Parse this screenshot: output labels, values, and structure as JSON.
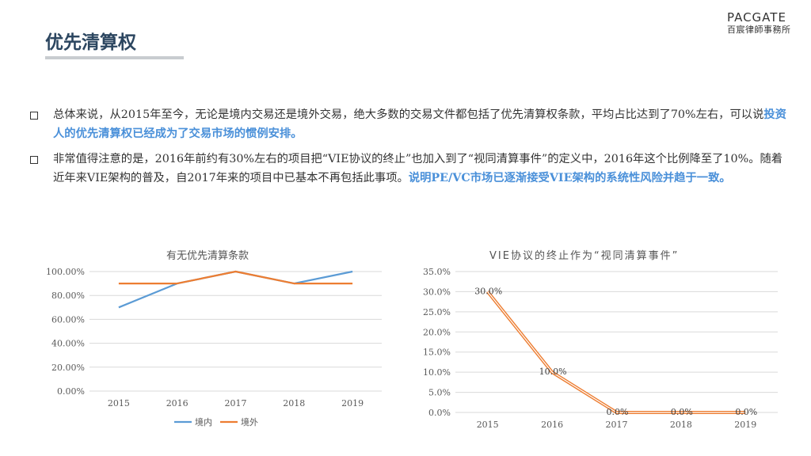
{
  "page": {
    "title": "优先清算权"
  },
  "logo": {
    "en": "PACGATE",
    "cn": "百宸律師事務所"
  },
  "bullets": [
    {
      "text": "总体来说，从2015年至今，无论是境内交易还是境外交易，绝大多数的交易文件都包括了优先清算权条款，平均占比达到了70%左右，可以说",
      "highlight": "投资人的优先清算权已经成为了交易市场的惯例安排。",
      "tail": ""
    },
    {
      "text": "非常值得注意的是，2016年前约有30%左右的项目把“VIE协议的终止”也加入到了“视同清算事件”的定义中，2016年这个比例降至了10%。随着近年来VIE架构的普及，自2017年来的项目中已基本不再包括此事项。",
      "highlight": "说明PE/VC市场已逐渐接受VIE架构的系统性风险并趋于一致。",
      "tail": ""
    }
  ],
  "chart_data": [
    {
      "type": "line",
      "title": "有无优先清算条款",
      "categories": [
        "2015",
        "2016",
        "2017",
        "2018",
        "2019"
      ],
      "ylim": [
        0,
        100
      ],
      "yticks": [
        "0.00%",
        "20.00%",
        "40.00%",
        "60.00%",
        "80.00%",
        "100.00%"
      ],
      "grid": true,
      "legend": "bottom",
      "series": [
        {
          "name": "境内",
          "color": "#5b9bd5",
          "values": [
            70,
            90,
            100,
            90,
            100
          ]
        },
        {
          "name": "境外",
          "color": "#ed7d31",
          "values": [
            90,
            90,
            100,
            90,
            90
          ]
        }
      ]
    },
    {
      "type": "line",
      "title": "VIE协议的终止作为“视同清算事件”",
      "categories": [
        "2015",
        "2016",
        "2017",
        "2018",
        "2019"
      ],
      "ylim": [
        0,
        35
      ],
      "yticks": [
        "0.0%",
        "5.0%",
        "10.0%",
        "15.0%",
        "20.0%",
        "25.0%",
        "30.0%",
        "35.0%"
      ],
      "grid": true,
      "color": "#ed7d31",
      "values": [
        30,
        10,
        0,
        0,
        0
      ],
      "data_labels": [
        "30.0%",
        "10.0%",
        "0.0%",
        "0.0%",
        "0.0%"
      ]
    }
  ]
}
